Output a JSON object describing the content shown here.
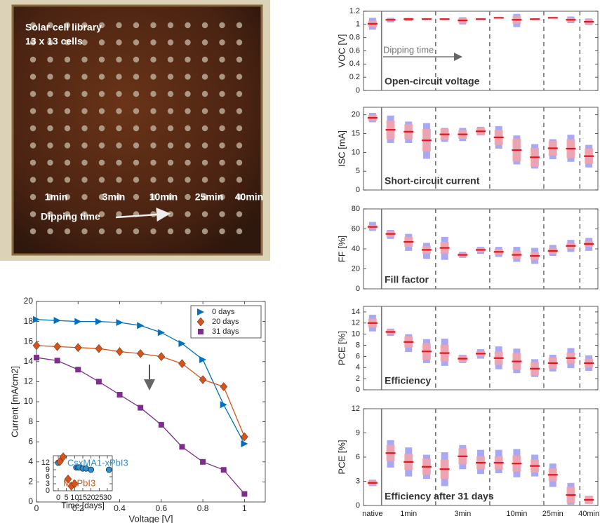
{
  "photo": {
    "title": "Solar cell library",
    "subtitle": "13 x 13 cells",
    "labels": [
      "1min",
      "3min",
      "10min",
      "25min",
      "40min"
    ],
    "annotation": "Dipping time"
  },
  "chart_data": [
    {
      "type": "line",
      "x_label": "Voltage [V]",
      "y_label": "Current [mA/cm2]",
      "xlim": [
        0,
        1.1
      ],
      "xticks": [
        0,
        0.2,
        0.4,
        0.6,
        0.8,
        1
      ],
      "ylim": [
        0,
        20
      ],
      "yticks": [
        0,
        2,
        4,
        6,
        8,
        10,
        12,
        14,
        16,
        18,
        20
      ],
      "legend": "upper right",
      "x": [
        0,
        0.1,
        0.2,
        0.3,
        0.4,
        0.5,
        0.6,
        0.7,
        0.8,
        0.9,
        1.0
      ],
      "series": [
        {
          "name": "0 days",
          "color": "#0072BD",
          "marker": "triangle",
          "values": [
            18.2,
            18.1,
            18.0,
            18.0,
            17.9,
            17.6,
            16.9,
            15.8,
            14.2,
            9.7,
            5.8
          ]
        },
        {
          "name": "20 days",
          "color": "#D95319",
          "marker": "diamond",
          "values": [
            15.6,
            15.5,
            15.4,
            15.3,
            15.0,
            14.8,
            14.5,
            13.8,
            12.2,
            11.5,
            6.5
          ]
        },
        {
          "name": "31 days",
          "color": "#7E2F8E",
          "marker": "square",
          "values": [
            14.4,
            14.1,
            13.2,
            12.0,
            10.7,
            9.4,
            7.7,
            5.5,
            4.0,
            3.2,
            0.8
          ]
        }
      ]
    },
    {
      "type": "scatter",
      "x_label": "Time [days]",
      "xlim": [
        -3,
        33
      ],
      "xticks": [
        0,
        5,
        10,
        15,
        20,
        25,
        30
      ],
      "ylim": [
        0,
        15
      ],
      "yticks": [
        0,
        3,
        6,
        9,
        12
      ],
      "series": [
        {
          "name": "CsxMA1-xPbI3",
          "color": "#2a8fd0",
          "marker": "circle",
          "x": [
            0,
            11,
            12,
            13,
            15,
            17,
            20,
            31
          ],
          "values": [
            12,
            10,
            10,
            10,
            9.5,
            9.5,
            9,
            9
          ]
        },
        {
          "name": "MAPbI3",
          "color": "#D95319",
          "marker": "diamond",
          "x": [
            1,
            3,
            6,
            8,
            10
          ],
          "values": [
            12.5,
            14.5,
            5,
            2,
            3
          ]
        }
      ]
    },
    {
      "type": "box",
      "y_label": "VOC [V]",
      "annotation": "Open-circuit voltage",
      "arrow_label": "Dipping time",
      "ylim": [
        0,
        1.2
      ],
      "yticks": [
        0,
        0.2,
        0.4,
        0.6,
        0.8,
        1,
        1.2
      ],
      "range_color": "#a8a8f4",
      "std_color": "#f7a3a6",
      "mean_color": "#e5141c",
      "mean": [
        1.01,
        1.07,
        1.08,
        1.08,
        1.08,
        1.06,
        1.08,
        1.1,
        1.07,
        1.08,
        1.1,
        1.07,
        1.04
      ],
      "std": [
        0.05,
        0.02,
        0.02,
        0.01,
        0.01,
        0.04,
        0.01,
        0.01,
        0.06,
        0.01,
        0.01,
        0.03,
        0.04
      ],
      "min": [
        0.92,
        1.03,
        1.05,
        1.07,
        1.07,
        1.0,
        1.08,
        1.09,
        0.96,
        1.08,
        1.09,
        1.02,
        0.99
      ],
      "max": [
        1.1,
        1.1,
        1.1,
        1.09,
        1.09,
        1.11,
        1.09,
        1.11,
        1.16,
        1.09,
        1.11,
        1.12,
        1.09
      ]
    },
    {
      "type": "box",
      "y_label": "ISC [mA]",
      "annotation": "Short-circuit current",
      "ylim": [
        0,
        22
      ],
      "yticks": [
        0,
        5,
        10,
        15,
        20
      ],
      "range_color": "#a8a8f4",
      "std_color": "#f7a3a6",
      "mean_color": "#e5141c",
      "mean": [
        19.2,
        16,
        15.5,
        13.2,
        14.8,
        14.8,
        15.6,
        14,
        10.6,
        8.7,
        11.1,
        11,
        9
      ],
      "std": [
        0.8,
        2.5,
        2,
        3,
        1.5,
        1.2,
        1,
        2,
        3,
        2.5,
        2,
        2.5,
        2
      ],
      "min": [
        18,
        12.5,
        12.5,
        8.3,
        12.8,
        13,
        14.5,
        11,
        6.8,
        5.7,
        8.2,
        7.5,
        6
      ],
      "max": [
        20.5,
        19.8,
        18.2,
        17.8,
        16.5,
        16.5,
        16.8,
        17,
        14.5,
        12.2,
        13.5,
        14.7,
        12
      ]
    },
    {
      "type": "box",
      "y_label": "FF [%]",
      "annotation": "Fill factor",
      "ylim": [
        0,
        80
      ],
      "yticks": [
        0,
        20,
        40,
        60,
        80
      ],
      "range_color": "#a8a8f4",
      "std_color": "#f7a3a6",
      "mean_color": "#e5141c",
      "mean": [
        62,
        55,
        47,
        39,
        41,
        34,
        39,
        37,
        34,
        33,
        38,
        43,
        45
      ],
      "std": [
        2,
        3,
        5,
        4,
        6,
        2,
        2,
        3,
        4,
        4,
        3,
        3,
        3
      ],
      "min": [
        58,
        50,
        38,
        30,
        29,
        31,
        35,
        32,
        27,
        25,
        33,
        37,
        38
      ],
      "max": [
        67,
        59,
        55,
        46,
        52,
        37,
        42,
        42,
        42,
        41,
        44,
        49,
        51
      ]
    },
    {
      "type": "box",
      "y_label": "PCE [%]",
      "annotation": "Efficiency",
      "ylim": [
        0,
        15
      ],
      "yticks": [
        0,
        2,
        4,
        6,
        8,
        10,
        12,
        14
      ],
      "range_color": "#a8a8f4",
      "std_color": "#f7a3a6",
      "mean_color": "#e5141c",
      "mean": [
        12,
        10.4,
        8.6,
        6.9,
        6.6,
        5.6,
        6.5,
        5.7,
        5.1,
        3.8,
        4.8,
        5.7,
        4.8
      ],
      "std": [
        0.8,
        0.4,
        1,
        1.5,
        1.5,
        0.6,
        0.5,
        1.2,
        1.5,
        1.2,
        1,
        1,
        0.8
      ],
      "min": [
        10.5,
        9.7,
        6.8,
        4.8,
        4.3,
        4.8,
        5.6,
        3.7,
        3,
        2.3,
        3.3,
        3.9,
        3.4
      ],
      "max": [
        13.5,
        11,
        10,
        9.1,
        9.2,
        6.3,
        7.3,
        7.8,
        7.4,
        5.5,
        6.3,
        7.5,
        6.2
      ]
    },
    {
      "type": "box",
      "y_label": "PCE [%]",
      "annotation": "Efficiency after 31 days",
      "ylim": [
        0,
        12
      ],
      "yticks": [
        0,
        3,
        6,
        9,
        12
      ],
      "categories": [
        "native",
        null,
        "1min",
        null,
        null,
        "3min",
        null,
        null,
        "10min",
        null,
        "25min",
        null,
        "40min"
      ],
      "range_color": "#a8a8f4",
      "std_color": "#f7a3a6",
      "mean_color": "#e5141c",
      "mean": [
        2.8,
        6.5,
        5.4,
        4.8,
        4.5,
        6.1,
        5.3,
        5.3,
        5.2,
        4.9,
        3.8,
        1.3,
        0.7
      ],
      "std": [
        0.3,
        1,
        1,
        1,
        1.2,
        1,
        0.8,
        0.8,
        1,
        0.8,
        0.8,
        1,
        0.5
      ],
      "min": [
        2.4,
        4.7,
        3.6,
        3.3,
        2.4,
        4.5,
        3.9,
        4,
        3.5,
        3.6,
        2.3,
        0.1,
        0.2
      ],
      "max": [
        3.2,
        8.1,
        7.2,
        6.3,
        6.6,
        7.5,
        6.9,
        6.9,
        7,
        6.3,
        5.2,
        2.8,
        1.2
      ]
    }
  ]
}
